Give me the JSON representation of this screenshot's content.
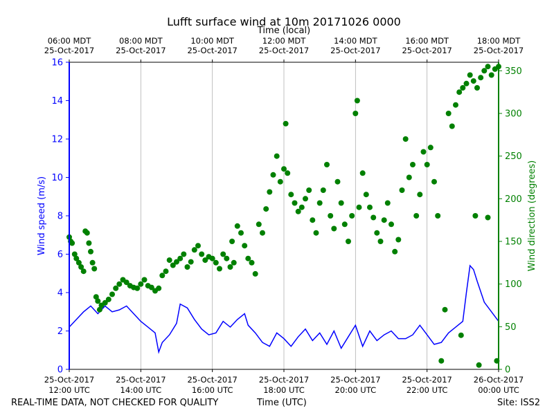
{
  "chart_data": {
    "type": "line+scatter",
    "title": "Lufft surface wind at 10m 20171026 0000",
    "top_axis_label": "Time (local)",
    "bottom_axis_label": "Time (UTC)",
    "left_axis_label": "Wind speed (m/s)",
    "right_axis_label": "Wind direction (degrees)",
    "x_range_hours_utc": [
      12,
      24
    ],
    "left_ylim": [
      0,
      16
    ],
    "right_ylim": [
      0,
      360
    ],
    "left_yticks": [
      0,
      2,
      4,
      6,
      8,
      10,
      12,
      14,
      16
    ],
    "right_yticks": [
      0,
      50,
      100,
      150,
      200,
      250,
      300,
      350
    ],
    "vertical_grid": true,
    "bottom_ticks": [
      {
        "hour": 12,
        "line1": "25-Oct-2017",
        "line2": "12:00 UTC"
      },
      {
        "hour": 14,
        "line1": "25-Oct-2017",
        "line2": "14:00 UTC"
      },
      {
        "hour": 16,
        "line1": "25-Oct-2017",
        "line2": "16:00 UTC"
      },
      {
        "hour": 18,
        "line1": "25-Oct-2017",
        "line2": "18:00 UTC"
      },
      {
        "hour": 20,
        "line1": "25-Oct-2017",
        "line2": "20:00 UTC"
      },
      {
        "hour": 22,
        "line1": "25-Oct-2017",
        "line2": "22:00 UTC"
      },
      {
        "hour": 24,
        "line1": "26-Oct-2017",
        "line2": "00:00 UTC"
      }
    ],
    "top_ticks": [
      {
        "hour": 12,
        "line1": "06:00 MDT",
        "line2": "25-Oct-2017"
      },
      {
        "hour": 14,
        "line1": "08:00 MDT",
        "line2": "25-Oct-2017"
      },
      {
        "hour": 16,
        "line1": "10:00 MDT",
        "line2": "25-Oct-2017"
      },
      {
        "hour": 18,
        "line1": "12:00 MDT",
        "line2": "25-Oct-2017"
      },
      {
        "hour": 20,
        "line1": "14:00 MDT",
        "line2": "25-Oct-2017"
      },
      {
        "hour": 22,
        "line1": "16:00 MDT",
        "line2": "25-Oct-2017"
      },
      {
        "hour": 24,
        "line1": "18:00 MDT",
        "line2": "25-Oct-2017"
      }
    ],
    "series": [
      {
        "name": "Wind speed",
        "axis": "left",
        "style": "line",
        "color": "#0000ff",
        "points": [
          [
            12.0,
            2.2
          ],
          [
            12.2,
            2.6
          ],
          [
            12.4,
            3.0
          ],
          [
            12.6,
            3.3
          ],
          [
            12.8,
            2.9
          ],
          [
            13.0,
            3.3
          ],
          [
            13.2,
            3.0
          ],
          [
            13.4,
            3.1
          ],
          [
            13.6,
            3.3
          ],
          [
            13.8,
            2.9
          ],
          [
            14.0,
            2.5
          ],
          [
            14.2,
            2.2
          ],
          [
            14.4,
            1.9
          ],
          [
            14.5,
            0.9
          ],
          [
            14.6,
            1.4
          ],
          [
            14.8,
            1.8
          ],
          [
            15.0,
            2.4
          ],
          [
            15.1,
            3.4
          ],
          [
            15.3,
            3.2
          ],
          [
            15.5,
            2.6
          ],
          [
            15.7,
            2.1
          ],
          [
            15.9,
            1.8
          ],
          [
            16.1,
            1.9
          ],
          [
            16.3,
            2.5
          ],
          [
            16.5,
            2.2
          ],
          [
            16.7,
            2.6
          ],
          [
            16.9,
            2.9
          ],
          [
            17.0,
            2.3
          ],
          [
            17.2,
            1.9
          ],
          [
            17.4,
            1.4
          ],
          [
            17.6,
            1.2
          ],
          [
            17.8,
            1.9
          ],
          [
            18.0,
            1.6
          ],
          [
            18.2,
            1.2
          ],
          [
            18.4,
            1.7
          ],
          [
            18.6,
            2.1
          ],
          [
            18.8,
            1.5
          ],
          [
            19.0,
            1.9
          ],
          [
            19.2,
            1.3
          ],
          [
            19.4,
            2.0
          ],
          [
            19.6,
            1.1
          ],
          [
            19.8,
            1.7
          ],
          [
            20.0,
            2.3
          ],
          [
            20.2,
            1.2
          ],
          [
            20.4,
            2.0
          ],
          [
            20.6,
            1.5
          ],
          [
            20.8,
            1.8
          ],
          [
            21.0,
            2.0
          ],
          [
            21.2,
            1.6
          ],
          [
            21.4,
            1.6
          ],
          [
            21.6,
            1.8
          ],
          [
            21.8,
            2.3
          ],
          [
            22.0,
            1.8
          ],
          [
            22.2,
            1.3
          ],
          [
            22.4,
            1.4
          ],
          [
            22.6,
            1.9
          ],
          [
            22.8,
            2.2
          ],
          [
            23.0,
            2.5
          ],
          [
            23.1,
            4.0
          ],
          [
            23.2,
            5.4
          ],
          [
            23.3,
            5.2
          ],
          [
            23.4,
            4.6
          ],
          [
            23.6,
            3.5
          ],
          [
            23.8,
            3.0
          ],
          [
            24.0,
            2.5
          ]
        ]
      },
      {
        "name": "Wind direction",
        "axis": "right",
        "style": "scatter",
        "color": "#008000",
        "points": [
          [
            12.0,
            155
          ],
          [
            12.04,
            150
          ],
          [
            12.08,
            148
          ],
          [
            12.15,
            135
          ],
          [
            12.2,
            130
          ],
          [
            12.27,
            125
          ],
          [
            12.33,
            120
          ],
          [
            12.4,
            115
          ],
          [
            12.45,
            162
          ],
          [
            12.5,
            160
          ],
          [
            12.55,
            148
          ],
          [
            12.6,
            138
          ],
          [
            12.65,
            125
          ],
          [
            12.7,
            118
          ],
          [
            12.75,
            85
          ],
          [
            12.8,
            80
          ],
          [
            12.85,
            70
          ],
          [
            12.9,
            75
          ],
          [
            13.0,
            78
          ],
          [
            13.1,
            82
          ],
          [
            13.2,
            88
          ],
          [
            13.3,
            95
          ],
          [
            13.4,
            100
          ],
          [
            13.5,
            105
          ],
          [
            13.6,
            102
          ],
          [
            13.7,
            98
          ],
          [
            13.8,
            96
          ],
          [
            13.9,
            95
          ],
          [
            14.0,
            100
          ],
          [
            14.1,
            105
          ],
          [
            14.2,
            98
          ],
          [
            14.3,
            96
          ],
          [
            14.4,
            92
          ],
          [
            14.5,
            95
          ],
          [
            14.6,
            110
          ],
          [
            14.7,
            115
          ],
          [
            14.8,
            128
          ],
          [
            14.9,
            122
          ],
          [
            15.0,
            126
          ],
          [
            15.1,
            130
          ],
          [
            15.2,
            135
          ],
          [
            15.3,
            120
          ],
          [
            15.4,
            126
          ],
          [
            15.5,
            140
          ],
          [
            15.6,
            145
          ],
          [
            15.7,
            135
          ],
          [
            15.8,
            128
          ],
          [
            15.9,
            132
          ],
          [
            16.0,
            130
          ],
          [
            16.1,
            125
          ],
          [
            16.2,
            118
          ],
          [
            16.3,
            135
          ],
          [
            16.4,
            130
          ],
          [
            16.5,
            120
          ],
          [
            16.55,
            150
          ],
          [
            16.6,
            125
          ],
          [
            16.7,
            168
          ],
          [
            16.8,
            160
          ],
          [
            16.9,
            145
          ],
          [
            17.0,
            130
          ],
          [
            17.1,
            125
          ],
          [
            17.2,
            112
          ],
          [
            17.3,
            170
          ],
          [
            17.4,
            160
          ],
          [
            17.5,
            188
          ],
          [
            17.6,
            208
          ],
          [
            17.7,
            228
          ],
          [
            17.8,
            250
          ],
          [
            17.9,
            220
          ],
          [
            18.0,
            235
          ],
          [
            18.05,
            288
          ],
          [
            18.1,
            230
          ],
          [
            18.2,
            205
          ],
          [
            18.3,
            195
          ],
          [
            18.4,
            185
          ],
          [
            18.5,
            190
          ],
          [
            18.6,
            200
          ],
          [
            18.7,
            210
          ],
          [
            18.8,
            175
          ],
          [
            18.9,
            160
          ],
          [
            19.0,
            195
          ],
          [
            19.1,
            210
          ],
          [
            19.2,
            240
          ],
          [
            19.3,
            180
          ],
          [
            19.4,
            165
          ],
          [
            19.5,
            220
          ],
          [
            19.6,
            195
          ],
          [
            19.7,
            170
          ],
          [
            19.8,
            150
          ],
          [
            19.9,
            180
          ],
          [
            20.0,
            300
          ],
          [
            20.05,
            315
          ],
          [
            20.1,
            190
          ],
          [
            20.2,
            230
          ],
          [
            20.3,
            205
          ],
          [
            20.4,
            190
          ],
          [
            20.5,
            178
          ],
          [
            20.6,
            160
          ],
          [
            20.7,
            150
          ],
          [
            20.8,
            175
          ],
          [
            20.9,
            195
          ],
          [
            21.0,
            170
          ],
          [
            21.1,
            138
          ],
          [
            21.2,
            152
          ],
          [
            21.3,
            210
          ],
          [
            21.4,
            270
          ],
          [
            21.5,
            225
          ],
          [
            21.6,
            240
          ],
          [
            21.7,
            180
          ],
          [
            21.8,
            205
          ],
          [
            21.9,
            255
          ],
          [
            22.0,
            240
          ],
          [
            22.1,
            260
          ],
          [
            22.2,
            220
          ],
          [
            22.3,
            180
          ],
          [
            22.4,
            10
          ],
          [
            22.5,
            70
          ],
          [
            22.6,
            300
          ],
          [
            22.7,
            285
          ],
          [
            22.8,
            310
          ],
          [
            22.9,
            325
          ],
          [
            23.0,
            330
          ],
          [
            23.1,
            335
          ],
          [
            23.2,
            345
          ],
          [
            23.3,
            338
          ],
          [
            23.4,
            330
          ],
          [
            23.5,
            342
          ],
          [
            23.6,
            350
          ],
          [
            23.7,
            355
          ],
          [
            23.8,
            345
          ],
          [
            23.9,
            352
          ],
          [
            24.0,
            355
          ],
          [
            23.35,
            180
          ],
          [
            23.7,
            178
          ],
          [
            23.95,
            10
          ],
          [
            23.45,
            5
          ],
          [
            22.95,
            40
          ]
        ]
      }
    ]
  },
  "footer": {
    "left_note": "REAL-TIME DATA, NOT CHECKED FOR QUALITY",
    "center_label": "Time (UTC)",
    "site": "Site: ISS2"
  },
  "colors": {
    "speed": "#0000ff",
    "direction": "#008000",
    "grid": "#b0b0b0"
  }
}
